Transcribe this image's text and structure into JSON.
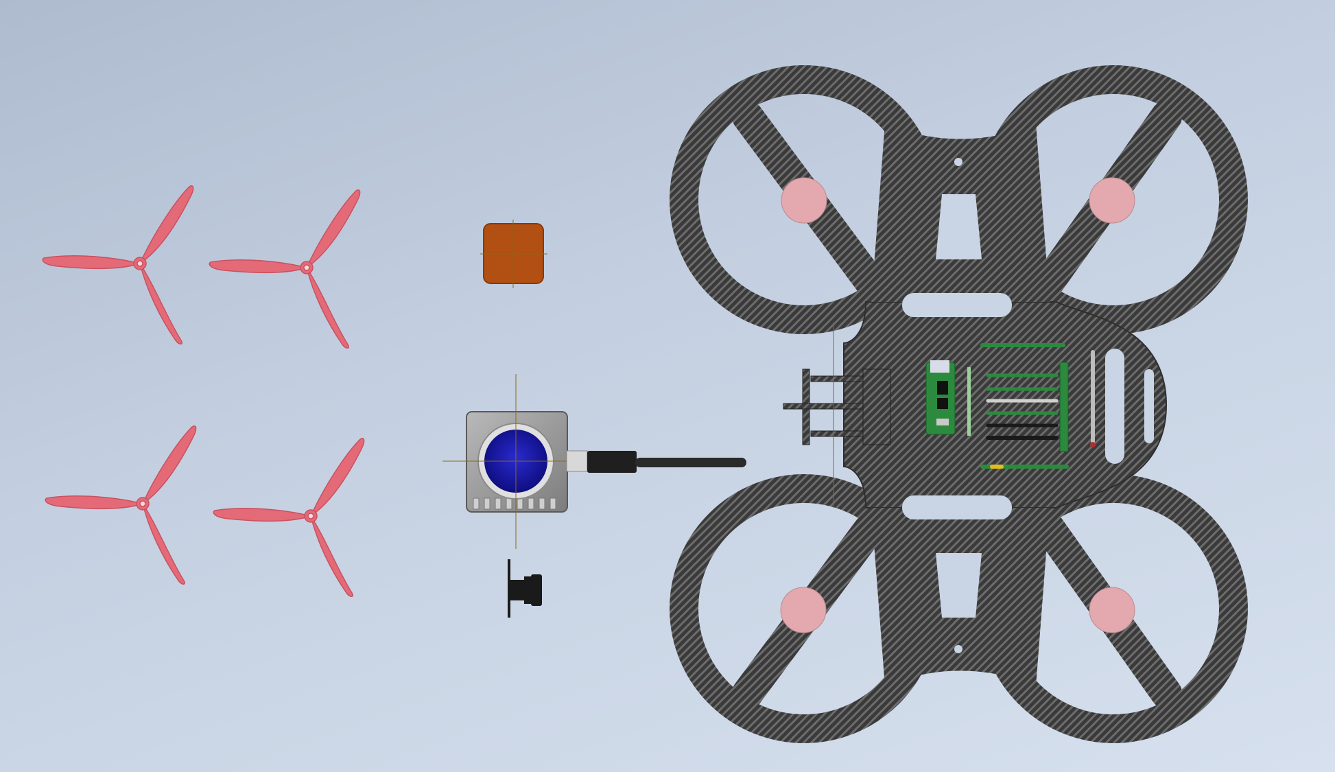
{
  "viewport": {
    "background_top": "#aebbcf",
    "background_bottom": "#d6e0ee"
  },
  "colors": {
    "propeller": "#e46a78",
    "propeller_dark": "#c85160",
    "carbon_dark": "#3a3a3a",
    "carbon_light": "#6c6c6c",
    "motor_pad": "#e3a9ae",
    "battery": "#b24f12",
    "camera_lens": "#1c1cb2",
    "camera_body": "#9a9a9a",
    "pcb_green": "#2c8a3e",
    "origin_axis": "#8a6a10"
  },
  "scene": {
    "propellers": [
      "propeller",
      "propeller",
      "propeller",
      "propeller"
    ],
    "frame_icon": "quad-frame-icon",
    "battery_icon": "battery-block-icon",
    "camera_icon": "fpv-camera-icon",
    "antenna_icon": "antenna-icon",
    "mount_icon": "camera-mount-icon"
  }
}
